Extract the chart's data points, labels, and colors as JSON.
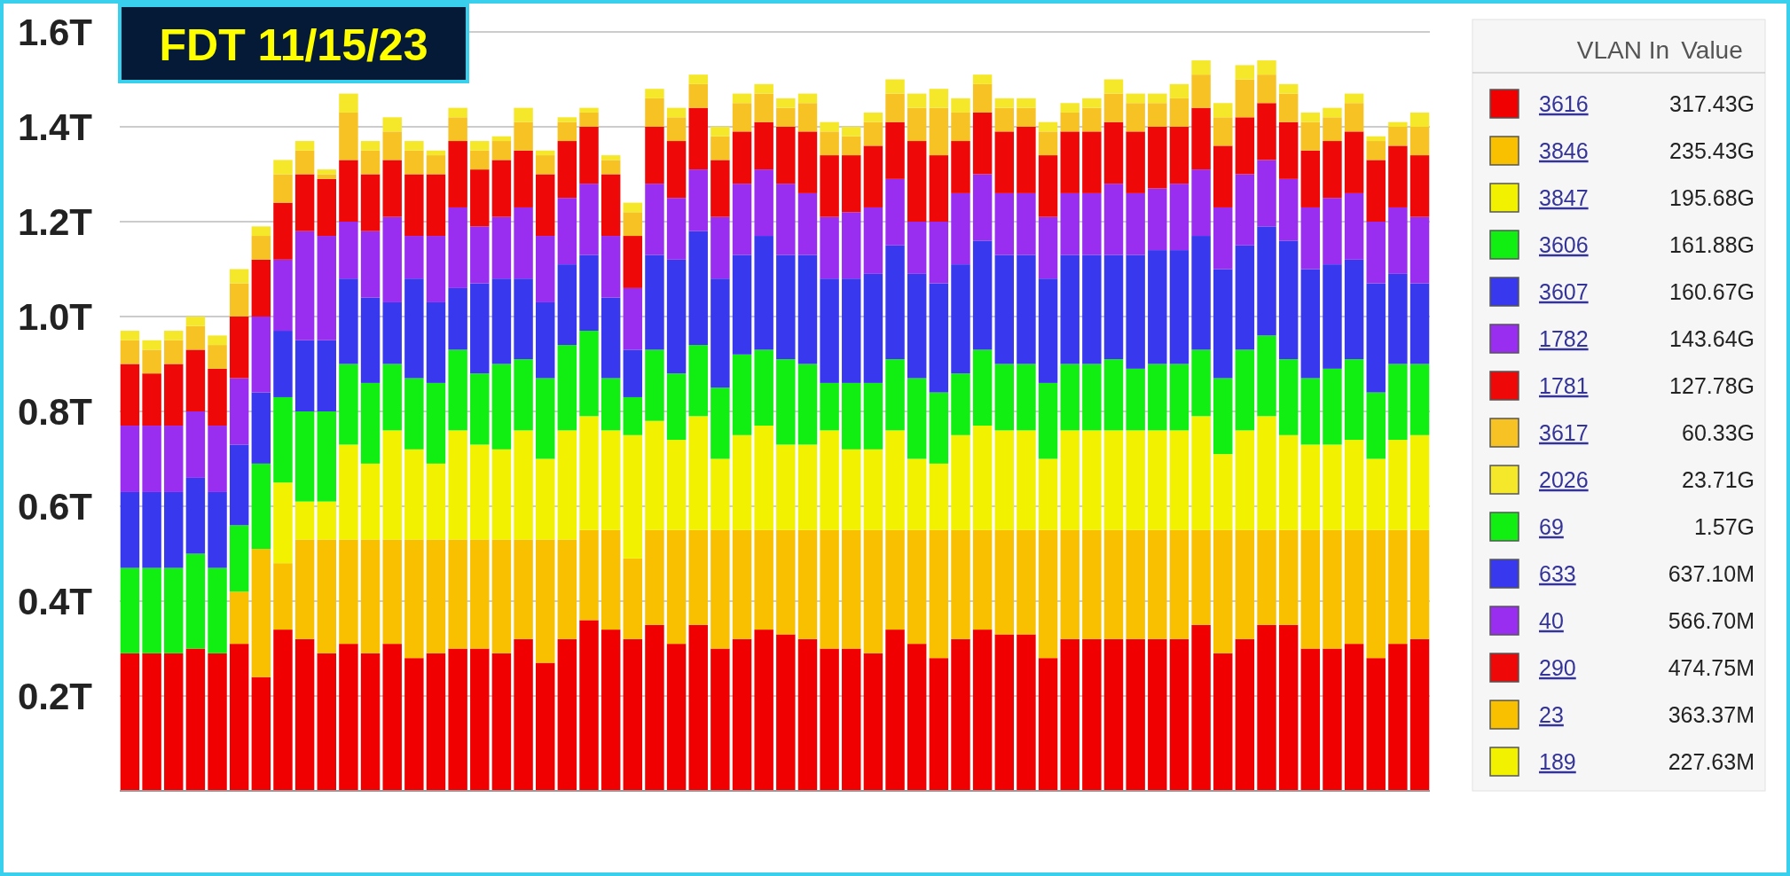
{
  "chart_data": {
    "type": "bar",
    "stacked": true,
    "title": "FDT 11/15/23",
    "legend_title": "VLAN In",
    "legend": "right",
    "grid": "y",
    "categories": [
      null,
      null,
      null,
      null,
      null,
      null,
      null,
      null,
      null,
      null,
      null,
      null,
      null,
      null,
      null,
      null,
      null,
      null,
      null,
      null,
      null,
      null,
      null,
      null,
      null,
      null,
      null,
      null,
      null,
      null,
      null,
      null,
      null,
      null,
      null,
      null,
      null,
      null,
      null,
      null,
      null,
      null,
      null,
      null,
      null,
      null,
      null,
      null,
      null,
      null,
      null,
      null,
      null,
      null,
      null,
      null,
      null,
      null,
      null,
      null
    ],
    "ylim": [
      0,
      1.6
    ],
    "yticks": [
      {
        "value": 0.2,
        "label": "0.2T"
      },
      {
        "value": 0.4,
        "label": "0.4T"
      },
      {
        "value": 0.6,
        "label": "0.6T"
      },
      {
        "value": 0.8,
        "label": "0.8T"
      },
      {
        "value": 1.0,
        "label": "1.0T"
      },
      {
        "value": 1.2,
        "label": "1.2T"
      },
      {
        "value": 1.4,
        "label": "1.4T"
      },
      {
        "value": 1.6,
        "label": "1.6T"
      }
    ],
    "series": [
      {
        "name": "3616",
        "color": "#f00000",
        "values": [
          0.29,
          0.29,
          0.29,
          0.3,
          0.29,
          0.31,
          0.24,
          0.34,
          0.32,
          0.29,
          0.31,
          0.29,
          0.31,
          0.28,
          0.29,
          0.3,
          0.3,
          0.29,
          0.32,
          0.27,
          0.32,
          0.36,
          0.34,
          0.32,
          0.35,
          0.31,
          0.35,
          0.3,
          0.32,
          0.34,
          0.33,
          0.32,
          0.3,
          0.3,
          0.29,
          0.34,
          0.31,
          0.28,
          0.32,
          0.34,
          0.33,
          0.33,
          0.28,
          0.32,
          0.32,
          0.32,
          0.32,
          0.32,
          0.32,
          0.35,
          0.29,
          0.32,
          0.35,
          0.35,
          0.3,
          0.3,
          0.31,
          0.28,
          0.31,
          0.32
        ]
      },
      {
        "name": "3846",
        "color": "#f9c000",
        "values": [
          0,
          0,
          0,
          0,
          0,
          0.11,
          0.27,
          0.14,
          0.21,
          0.24,
          0.22,
          0.24,
          0.22,
          0.25,
          0.24,
          0.23,
          0.23,
          0.24,
          0.21,
          0.26,
          0.21,
          0.19,
          0.21,
          0.17,
          0.2,
          0.24,
          0.2,
          0.25,
          0.23,
          0.21,
          0.22,
          0.23,
          0.25,
          0.25,
          0.26,
          0.21,
          0.24,
          0.27,
          0.23,
          0.21,
          0.22,
          0.22,
          0.27,
          0.23,
          0.23,
          0.23,
          0.23,
          0.23,
          0.23,
          0.2,
          0.26,
          0.23,
          0.2,
          0.2,
          0.25,
          0.25,
          0.24,
          0.27,
          0.24,
          0.23
        ]
      },
      {
        "name": "3847",
        "color": "#f2f200",
        "values": [
          0,
          0,
          0,
          0,
          0,
          0,
          0,
          0.17,
          0.08,
          0.08,
          0.2,
          0.16,
          0.23,
          0.19,
          0.16,
          0.23,
          0.2,
          0.19,
          0.23,
          0.17,
          0.23,
          0.24,
          0.21,
          0.26,
          0.23,
          0.19,
          0.24,
          0.15,
          0.2,
          0.22,
          0.18,
          0.18,
          0.21,
          0.17,
          0.17,
          0.21,
          0.15,
          0.14,
          0.2,
          0.22,
          0.21,
          0.21,
          0.15,
          0.21,
          0.21,
          0.21,
          0.21,
          0.21,
          0.21,
          0.24,
          0.16,
          0.21,
          0.24,
          0.2,
          0.18,
          0.18,
          0.19,
          0.15,
          0.19,
          0.2
        ]
      },
      {
        "name": "3606",
        "color": "#11ee11",
        "values": [
          0.18,
          0.18,
          0.18,
          0.2,
          0.18,
          0.14,
          0.18,
          0.18,
          0.19,
          0.19,
          0.17,
          0.17,
          0.14,
          0.15,
          0.17,
          0.17,
          0.15,
          0.18,
          0.15,
          0.17,
          0.18,
          0.18,
          0.11,
          0.08,
          0.15,
          0.14,
          0.15,
          0.15,
          0.17,
          0.16,
          0.18,
          0.17,
          0.1,
          0.14,
          0.14,
          0.15,
          0.17,
          0.15,
          0.13,
          0.16,
          0.14,
          0.14,
          0.16,
          0.14,
          0.14,
          0.15,
          0.13,
          0.14,
          0.14,
          0.14,
          0.16,
          0.17,
          0.17,
          0.16,
          0.14,
          0.16,
          0.17,
          0.14,
          0.16,
          0.15
        ]
      },
      {
        "name": "3607",
        "color": "#3838ee",
        "values": [
          0.16,
          0.16,
          0.16,
          0.16,
          0.16,
          0.17,
          0.15,
          0.14,
          0.15,
          0.15,
          0.18,
          0.18,
          0.13,
          0.21,
          0.17,
          0.13,
          0.19,
          0.18,
          0.17,
          0.16,
          0.17,
          0.16,
          0.17,
          0.1,
          0.2,
          0.24,
          0.24,
          0.23,
          0.21,
          0.24,
          0.22,
          0.23,
          0.22,
          0.22,
          0.23,
          0.24,
          0.22,
          0.23,
          0.23,
          0.23,
          0.23,
          0.23,
          0.22,
          0.23,
          0.23,
          0.22,
          0.24,
          0.24,
          0.24,
          0.24,
          0.23,
          0.22,
          0.23,
          0.25,
          0.23,
          0.22,
          0.21,
          0.23,
          0.19,
          0.17
        ]
      },
      {
        "name": "1782",
        "color": "#9a2ef0",
        "values": [
          0.14,
          0.14,
          0.14,
          0.14,
          0.14,
          0.14,
          0.16,
          0.15,
          0.23,
          0.22,
          0.12,
          0.14,
          0.18,
          0.09,
          0.14,
          0.17,
          0.12,
          0.13,
          0.15,
          0.14,
          0.14,
          0.15,
          0.13,
          0.13,
          0.15,
          0.13,
          0.13,
          0.13,
          0.15,
          0.14,
          0.15,
          0.13,
          0.13,
          0.14,
          0.14,
          0.14,
          0.11,
          0.13,
          0.15,
          0.14,
          0.13,
          0.13,
          0.13,
          0.13,
          0.13,
          0.15,
          0.13,
          0.13,
          0.14,
          0.14,
          0.13,
          0.15,
          0.14,
          0.13,
          0.13,
          0.14,
          0.14,
          0.13,
          0.14,
          0.14
        ]
      },
      {
        "name": "1781",
        "color": "#ee0808",
        "values": [
          0.13,
          0.11,
          0.13,
          0.13,
          0.12,
          0.13,
          0.12,
          0.12,
          0.12,
          0.12,
          0.13,
          0.12,
          0.12,
          0.13,
          0.13,
          0.14,
          0.12,
          0.12,
          0.12,
          0.13,
          0.12,
          0.12,
          0.13,
          0.11,
          0.12,
          0.12,
          0.13,
          0.12,
          0.11,
          0.1,
          0.12,
          0.13,
          0.13,
          0.12,
          0.13,
          0.12,
          0.17,
          0.14,
          0.11,
          0.13,
          0.13,
          0.14,
          0.13,
          0.13,
          0.13,
          0.13,
          0.13,
          0.13,
          0.12,
          0.13,
          0.13,
          0.12,
          0.12,
          0.12,
          0.12,
          0.12,
          0.13,
          0.13,
          0.13,
          0.13
        ]
      },
      {
        "name": "3617",
        "color": "#f7c224",
        "values": [
          0.05,
          0.05,
          0.05,
          0.05,
          0.05,
          0.07,
          0.05,
          0.06,
          0.05,
          0.01,
          0.1,
          0.05,
          0.06,
          0.05,
          0.04,
          0.05,
          0.04,
          0.04,
          0.06,
          0.04,
          0.04,
          0.03,
          0.03,
          0.05,
          0.06,
          0.05,
          0.05,
          0.05,
          0.06,
          0.06,
          0.04,
          0.06,
          0.05,
          0.04,
          0.05,
          0.06,
          0.07,
          0.1,
          0.06,
          0.06,
          0.05,
          0.04,
          0.05,
          0.04,
          0.05,
          0.06,
          0.06,
          0.05,
          0.06,
          0.07,
          0.06,
          0.08,
          0.06,
          0.06,
          0.06,
          0.05,
          0.06,
          0.04,
          0.04,
          0.06
        ]
      },
      {
        "name": "2026",
        "color": "#f5e82a",
        "values": [
          0.02,
          0.02,
          0.02,
          0.02,
          0.02,
          0.03,
          0.02,
          0.03,
          0.02,
          0.01,
          0.04,
          0.02,
          0.03,
          0.02,
          0.01,
          0.02,
          0.02,
          0.01,
          0.03,
          0.01,
          0.01,
          0.01,
          0.01,
          0.02,
          0.02,
          0.02,
          0.02,
          0.02,
          0.02,
          0.02,
          0.02,
          0.02,
          0.02,
          0.02,
          0.02,
          0.03,
          0.03,
          0.04,
          0.03,
          0.02,
          0.02,
          0.02,
          0.02,
          0.02,
          0.02,
          0.03,
          0.02,
          0.02,
          0.03,
          0.03,
          0.03,
          0.03,
          0.03,
          0.02,
          0.02,
          0.02,
          0.02,
          0.01,
          0.01,
          0.03
        ]
      },
      {
        "name": "69",
        "color": "#11ee11",
        "values": [
          null,
          null,
          null,
          null,
          null,
          null,
          null,
          null,
          null,
          null,
          null,
          null,
          null,
          null,
          null,
          null,
          null,
          null,
          null,
          null,
          null,
          null,
          null,
          null,
          null,
          null,
          null,
          null,
          null,
          null,
          null,
          null,
          null,
          null,
          null,
          null,
          null,
          null,
          null,
          null,
          null,
          null,
          null,
          null,
          null,
          null,
          null,
          null,
          null,
          null,
          null,
          null,
          null,
          null,
          null,
          null,
          null,
          null,
          null,
          null
        ]
      },
      {
        "name": "633",
        "color": "#3838ee",
        "values": [
          null,
          null,
          null,
          null,
          null,
          null,
          null,
          null,
          null,
          null,
          null,
          null,
          null,
          null,
          null,
          null,
          null,
          null,
          null,
          null,
          null,
          null,
          null,
          null,
          null,
          null,
          null,
          null,
          null,
          null,
          null,
          null,
          null,
          null,
          null,
          null,
          null,
          null,
          null,
          null,
          null,
          null,
          null,
          null,
          null,
          null,
          null,
          null,
          null,
          null,
          null,
          null,
          null,
          null,
          null,
          null,
          null,
          null,
          null,
          null
        ]
      },
      {
        "name": "40",
        "color": "#9a2ef0",
        "values": [
          null,
          null,
          null,
          null,
          null,
          null,
          null,
          null,
          null,
          null,
          null,
          null,
          null,
          null,
          null,
          null,
          null,
          null,
          null,
          null,
          null,
          null,
          null,
          null,
          null,
          null,
          null,
          null,
          null,
          null,
          null,
          null,
          null,
          null,
          null,
          null,
          null,
          null,
          null,
          null,
          null,
          null,
          null,
          null,
          null,
          null,
          null,
          null,
          null,
          null,
          null,
          null,
          null,
          null,
          null,
          null,
          null,
          null,
          null,
          null
        ]
      },
      {
        "name": "290",
        "color": "#ee0808",
        "values": [
          null,
          null,
          null,
          null,
          null,
          null,
          null,
          null,
          null,
          null,
          null,
          null,
          null,
          null,
          null,
          null,
          null,
          null,
          null,
          null,
          null,
          null,
          null,
          null,
          null,
          null,
          null,
          null,
          null,
          null,
          null,
          null,
          null,
          null,
          null,
          null,
          null,
          null,
          null,
          null,
          null,
          null,
          null,
          null,
          null,
          null,
          null,
          null,
          null,
          null,
          null,
          null,
          null,
          null,
          null,
          null,
          null,
          null,
          null,
          null
        ]
      },
      {
        "name": "23",
        "color": "#f9c000",
        "values": [
          null,
          null,
          null,
          null,
          null,
          null,
          null,
          null,
          null,
          null,
          null,
          null,
          null,
          null,
          null,
          null,
          null,
          null,
          null,
          null,
          null,
          null,
          null,
          null,
          null,
          null,
          null,
          null,
          null,
          null,
          null,
          null,
          null,
          null,
          null,
          null,
          null,
          null,
          null,
          null,
          null,
          null,
          null,
          null,
          null,
          null,
          null,
          null,
          null,
          null,
          null,
          null,
          null,
          null,
          null,
          null,
          null,
          null,
          null,
          null
        ]
      },
      {
        "name": "189",
        "color": "#f2f200",
        "values": [
          null,
          null,
          null,
          null,
          null,
          null,
          null,
          null,
          null,
          null,
          null,
          null,
          null,
          null,
          null,
          null,
          null,
          null,
          null,
          null,
          null,
          null,
          null,
          null,
          null,
          null,
          null,
          null,
          null,
          null,
          null,
          null,
          null,
          null,
          null,
          null,
          null,
          null,
          null,
          null,
          null,
          null,
          null,
          null,
          null,
          null,
          null,
          null,
          null,
          null,
          null,
          null,
          null,
          null,
          null,
          null,
          null,
          null,
          null,
          null
        ]
      }
    ],
    "annotations": [
      "Value",
      "317.43G",
      "235.43G",
      "195.68G",
      "161.88G",
      "160.67G",
      "143.64G",
      "127.78G",
      "60.33G",
      "23.71G",
      "1.57G",
      "637.10M",
      "566.70M",
      "474.75M",
      "363.37M",
      "227.63M"
    ]
  }
}
